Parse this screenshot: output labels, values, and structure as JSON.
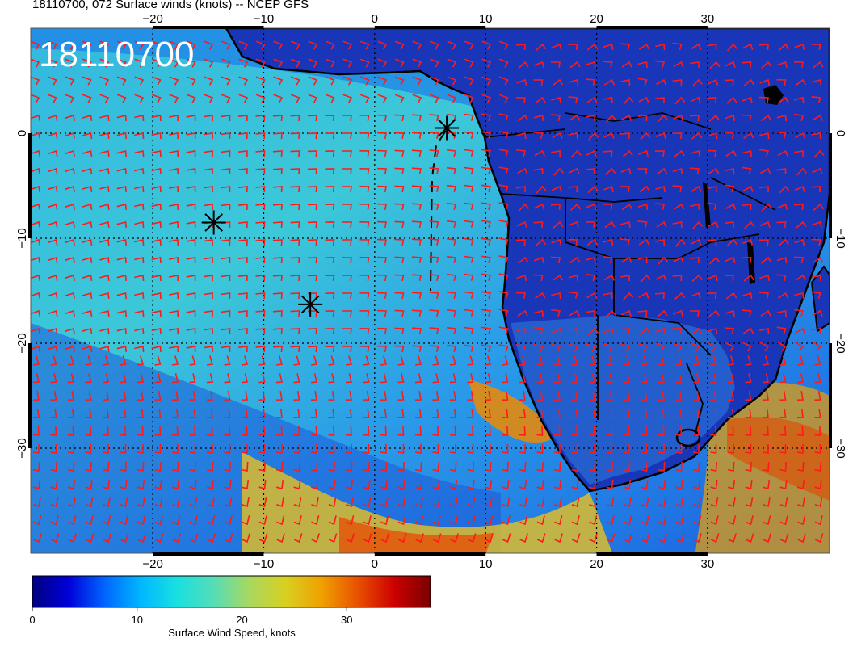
{
  "figure_title": "18110700, 072 Surface winds (knots) -- NCEP GFS",
  "stamp": "18110700",
  "map": {
    "lon_range": [
      -31,
      41
    ],
    "lat_range": [
      10,
      -40
    ],
    "lon_ticks": [
      -20,
      -10,
      0,
      10,
      20,
      30
    ],
    "lat_ticks": [
      0,
      -10,
      -20,
      -30
    ],
    "lon_tick_labels": [
      "−20",
      "−10",
      "0",
      "10",
      "20",
      "30"
    ],
    "lat_tick_labels": [
      "0",
      "−10",
      "−20",
      "−30"
    ],
    "grid": "dotted",
    "coastline_color": "#000000",
    "barb_color": "#ff1a1a"
  },
  "markers": [
    {
      "name": "asterisk",
      "lon": -14.5,
      "lat": -8.5
    },
    {
      "name": "asterisk",
      "lon": -5.8,
      "lat": -16.3
    },
    {
      "name": "asterisk",
      "lon": 6.5,
      "lat": 0.5
    }
  ],
  "colorbar": {
    "label": "Surface Wind Speed, knots",
    "min": 0,
    "max": 38,
    "ticks": [
      0,
      10,
      20,
      30
    ],
    "tick_labels": [
      "0",
      "10",
      "20",
      "30"
    ],
    "colors": [
      "#00007f",
      "#0000d8",
      "#0066ff",
      "#00b8ff",
      "#19e0e0",
      "#55ddb8",
      "#a8d860",
      "#d8d020",
      "#f0a000",
      "#e85000",
      "#cc0000",
      "#7a0000"
    ]
  }
}
